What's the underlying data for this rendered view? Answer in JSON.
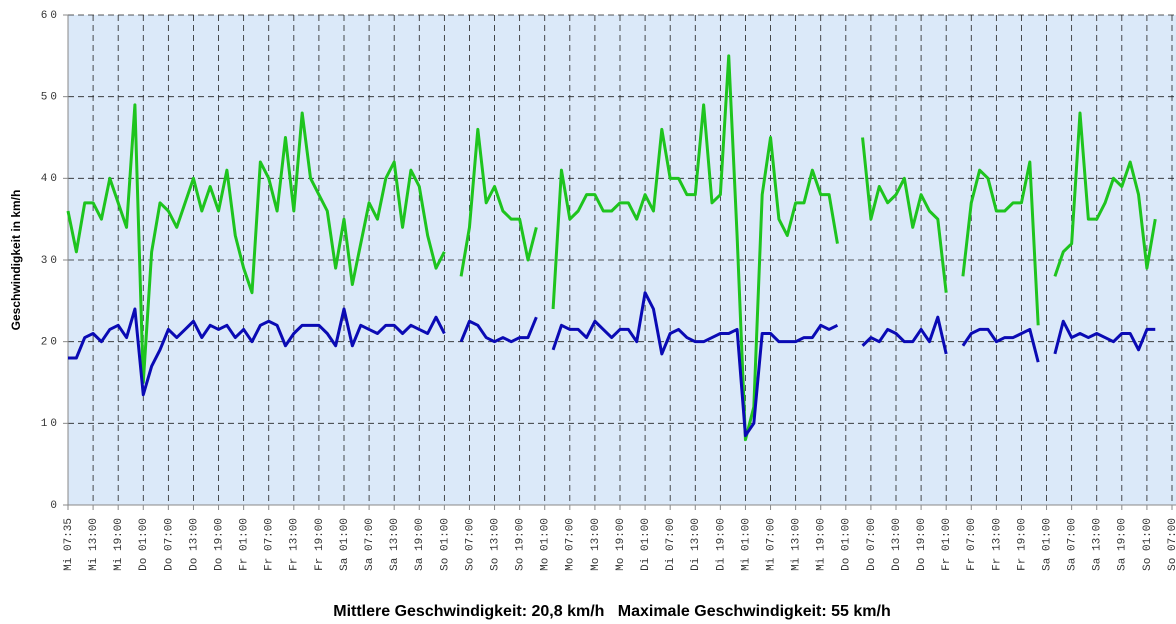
{
  "chart_data": {
    "type": "line",
    "y_label": "Geschwindigkeit in km/h",
    "footer": "Mittlere Geschwindigkeit: 20,8 km/h   Maximale Geschwindigkeit: 55 km/h",
    "categories": [
      "Mi 07:35",
      null,
      null,
      "Mi 13:00",
      null,
      null,
      "Mi 19:00",
      null,
      null,
      "Do 01:00",
      null,
      null,
      "Do 07:00",
      null,
      null,
      "Do 13:00",
      null,
      null,
      "Do 19:00",
      null,
      null,
      "Fr 01:00",
      null,
      null,
      "Fr 07:00",
      null,
      null,
      "Fr 13:00",
      null,
      null,
      "Fr 19:00",
      null,
      null,
      "Sa 01:00",
      null,
      null,
      "Sa 07:00",
      null,
      null,
      "Sa 13:00",
      null,
      null,
      "Sa 19:00",
      null,
      null,
      "So 01:00",
      null,
      null,
      "So 07:00",
      null,
      null,
      "So 13:00",
      null,
      null,
      "So 19:00",
      null,
      null,
      "Mo 01:00",
      null,
      null,
      "Mo 07:00",
      null,
      null,
      "Mo 13:00",
      null,
      null,
      "Mo 19:00",
      null,
      null,
      "Di 01:00",
      null,
      null,
      "Di 07:00",
      null,
      null,
      "Di 13:00",
      null,
      null,
      "Di 19:00",
      null,
      null,
      "Mi 01:00",
      null,
      null,
      "Mi 07:00",
      null,
      null,
      "Mi 13:00",
      null,
      null,
      "Mi 19:00",
      null,
      null,
      "Do 01:00",
      null,
      null,
      "Do 07:00",
      null,
      null,
      "Do 13:00",
      null,
      null,
      "Do 19:00",
      null,
      null,
      "Fr 01:00",
      null,
      null,
      "Fr 07:00",
      null,
      null,
      "Fr 13:00",
      null,
      null,
      "Fr 19:00",
      null,
      null,
      "Sa 01:00",
      null,
      null,
      "Sa 07:00",
      null,
      null,
      "Sa 13:00",
      null,
      null,
      "Sa 19:00",
      null,
      null,
      "So 01:00",
      null,
      null,
      "So 07:00"
    ],
    "series": [
      {
        "color": "#1ec41e",
        "values": [
          36,
          31,
          37,
          37,
          35,
          40,
          37,
          34,
          49,
          15,
          31,
          37,
          36,
          34,
          37,
          40,
          36,
          39,
          36,
          41,
          33,
          29,
          26,
          42,
          40,
          36,
          45,
          36,
          48,
          40,
          38,
          36,
          29,
          35,
          27,
          32,
          37,
          35,
          40,
          42,
          34,
          41,
          39,
          33,
          29,
          31,
          null,
          28,
          34,
          46,
          37,
          39,
          36,
          35,
          35,
          30,
          34,
          null,
          24,
          41,
          35,
          36,
          38,
          38,
          36,
          36,
          37,
          37,
          35,
          38,
          36,
          46,
          40,
          40,
          38,
          38,
          49,
          37,
          38,
          55,
          33,
          8,
          12,
          38,
          45,
          35,
          33,
          37,
          37,
          41,
          38,
          38,
          32,
          null,
          null,
          45,
          35,
          39,
          37,
          38,
          40,
          34,
          38,
          36,
          35,
          26,
          null,
          28,
          37,
          41,
          40,
          36,
          36,
          37,
          37,
          42,
          22,
          null,
          28,
          31,
          32,
          48,
          35,
          35,
          37,
          40,
          39,
          42,
          38,
          29,
          35,
          null,
          35
        ]
      },
      {
        "color": "#0a0ab4",
        "values": [
          18,
          18,
          20.5,
          21,
          20,
          21.5,
          22,
          20.5,
          24,
          13.5,
          17,
          19,
          21.5,
          20.5,
          21.5,
          22.5,
          20.5,
          22,
          21.5,
          22,
          20.5,
          21.5,
          20,
          22,
          22.5,
          22,
          19.5,
          21,
          22,
          22,
          22,
          21,
          19.5,
          24,
          19.5,
          22,
          21.5,
          21,
          22,
          22,
          21,
          22,
          21.5,
          21,
          23,
          21,
          null,
          20,
          22.5,
          22,
          20.5,
          20,
          20.5,
          20,
          20.5,
          20.5,
          23,
          null,
          19,
          22,
          21.5,
          21.5,
          20.5,
          22.5,
          21.5,
          20.5,
          21.5,
          21.5,
          20,
          26,
          24,
          18.5,
          21,
          21.5,
          20.5,
          20,
          20,
          20.5,
          21,
          21,
          21.5,
          8.5,
          10,
          21,
          21,
          20,
          20,
          20,
          20.5,
          20.5,
          22,
          21.5,
          22,
          null,
          null,
          19.5,
          20.5,
          20,
          21.5,
          21,
          20,
          20,
          21.5,
          20,
          23,
          18.5,
          null,
          19.5,
          21,
          21.5,
          21.5,
          20,
          20.5,
          20.5,
          21,
          21.5,
          17.5,
          null,
          18.5,
          22.5,
          20.5,
          21,
          20.5,
          21,
          20.5,
          20,
          21,
          21,
          19,
          21.5,
          21.5,
          null,
          22.5
        ]
      }
    ],
    "ylim": [
      0,
      60
    ],
    "yticks": [
      0,
      10,
      20,
      30,
      40,
      50,
      60
    ],
    "grid": true
  }
}
